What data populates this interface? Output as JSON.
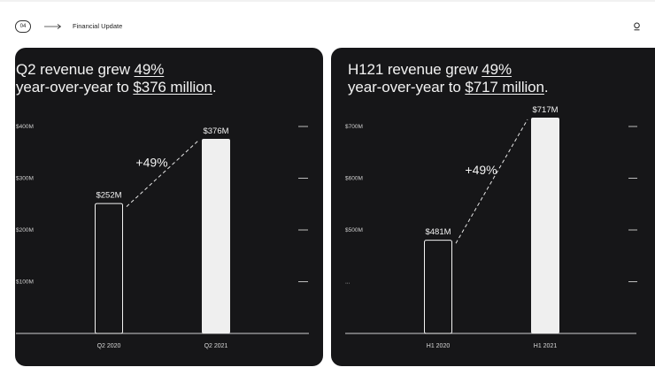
{
  "header": {
    "page_number": "04",
    "section_title": "Financial Update"
  },
  "cards": [
    {
      "headline": {
        "line1_prefix": "Q2 revenue grew ",
        "line1_highlight": "49%",
        "line2_prefix": "year-over-year to ",
        "line2_highlight": "$376 million",
        "line2_suffix": "."
      }
    },
    {
      "headline": {
        "line1_prefix": "H121 revenue grew ",
        "line1_highlight": "49%",
        "line2_prefix": "year-over-year to ",
        "line2_highlight": "$717 million",
        "line2_suffix": "."
      }
    }
  ],
  "chart_data": [
    {
      "type": "bar",
      "title": "Q2 revenue grew 49% year-over-year to $376 million.",
      "categories": [
        "Q2 2020",
        "Q2 2021"
      ],
      "values": [
        252,
        376
      ],
      "value_labels": [
        "$252M",
        "$376M"
      ],
      "bar_styles": [
        "outline",
        "filled"
      ],
      "yticks": [
        100,
        200,
        300,
        400
      ],
      "ytick_labels": [
        "$100M",
        "$200M",
        "$300M",
        "$400M"
      ],
      "ylim": [
        0,
        400
      ],
      "annotation": "+49%",
      "xlabel": "",
      "ylabel": ""
    },
    {
      "type": "bar",
      "title": "H121 revenue grew 49% year-over-year to $717 million.",
      "categories": [
        "H1 2020",
        "H1 2021"
      ],
      "values": [
        481,
        717
      ],
      "value_labels": [
        "$481M",
        "$717M"
      ],
      "bar_styles": [
        "outline",
        "filled"
      ],
      "yticks": [
        400,
        500,
        600,
        700
      ],
      "ytick_labels": [
        "...",
        "$500M",
        "$600M",
        "$700M"
      ],
      "ylim": [
        300,
        700
      ],
      "annotation": "+49%",
      "xlabel": "",
      "ylabel": ""
    }
  ]
}
